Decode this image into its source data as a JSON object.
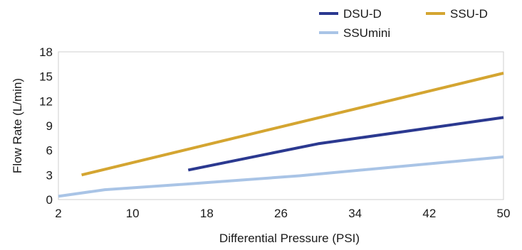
{
  "chart_data": {
    "type": "line",
    "title": "",
    "xlabel": "Differential Pressure (PSI)",
    "ylabel": "Flow Rate (L/min)",
    "xlim": [
      2,
      50
    ],
    "ylim": [
      0,
      18
    ],
    "xticks": [
      2,
      10,
      18,
      26,
      34,
      42,
      50
    ],
    "yticks": [
      0,
      3,
      6,
      9,
      12,
      15,
      18
    ],
    "grid": false,
    "legend_position": "top-right",
    "series": [
      {
        "name": "DSU-D",
        "color": "#2b3990",
        "points": [
          [
            16,
            3.6
          ],
          [
            30,
            6.8
          ],
          [
            50,
            10.0
          ]
        ]
      },
      {
        "name": "SSU-D",
        "color": "#d4a531",
        "points": [
          [
            4.5,
            3.0
          ],
          [
            50,
            15.4
          ]
        ]
      },
      {
        "name": "SSUmini",
        "color": "#a9c4e6",
        "points": [
          [
            2,
            0.4
          ],
          [
            7,
            1.2
          ],
          [
            16,
            1.9
          ],
          [
            28,
            2.9
          ],
          [
            50,
            5.2
          ]
        ]
      }
    ]
  }
}
